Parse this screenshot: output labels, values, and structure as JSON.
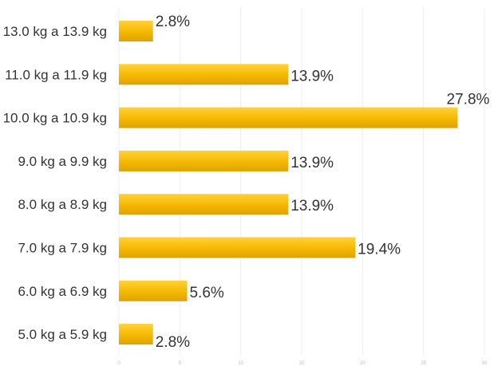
{
  "chart_data": {
    "type": "bar",
    "orientation": "horizontal",
    "categories": [
      "13.0 kg a 13.9 kg",
      "11.0 kg a 11.9 kg",
      "10.0 kg a 10.9 kg",
      "9.0 kg a 9.9 kg",
      "8.0 kg a 8.9 kg",
      "7.0 kg a 7.9 kg",
      "6.0 kg a 6.9 kg",
      "5.0 kg a 5.9 kg"
    ],
    "values": [
      2.8,
      13.9,
      27.8,
      13.9,
      13.9,
      19.4,
      5.6,
      2.8
    ],
    "data_labels": [
      "2.8%",
      "13.9%",
      "27.8%",
      "13.9%",
      "13.9%",
      "19.4%",
      "5.6%",
      "2.8%"
    ],
    "xlim": [
      0,
      30
    ],
    "x_ticks": [
      0,
      5,
      10,
      15,
      20,
      25,
      30
    ],
    "grid": true,
    "bar_color": "#f5b800",
    "bar_gradient_light": "#ffd23a",
    "bar_gradient_dark": "#dfa200",
    "title": "",
    "xlabel": "",
    "ylabel": ""
  }
}
